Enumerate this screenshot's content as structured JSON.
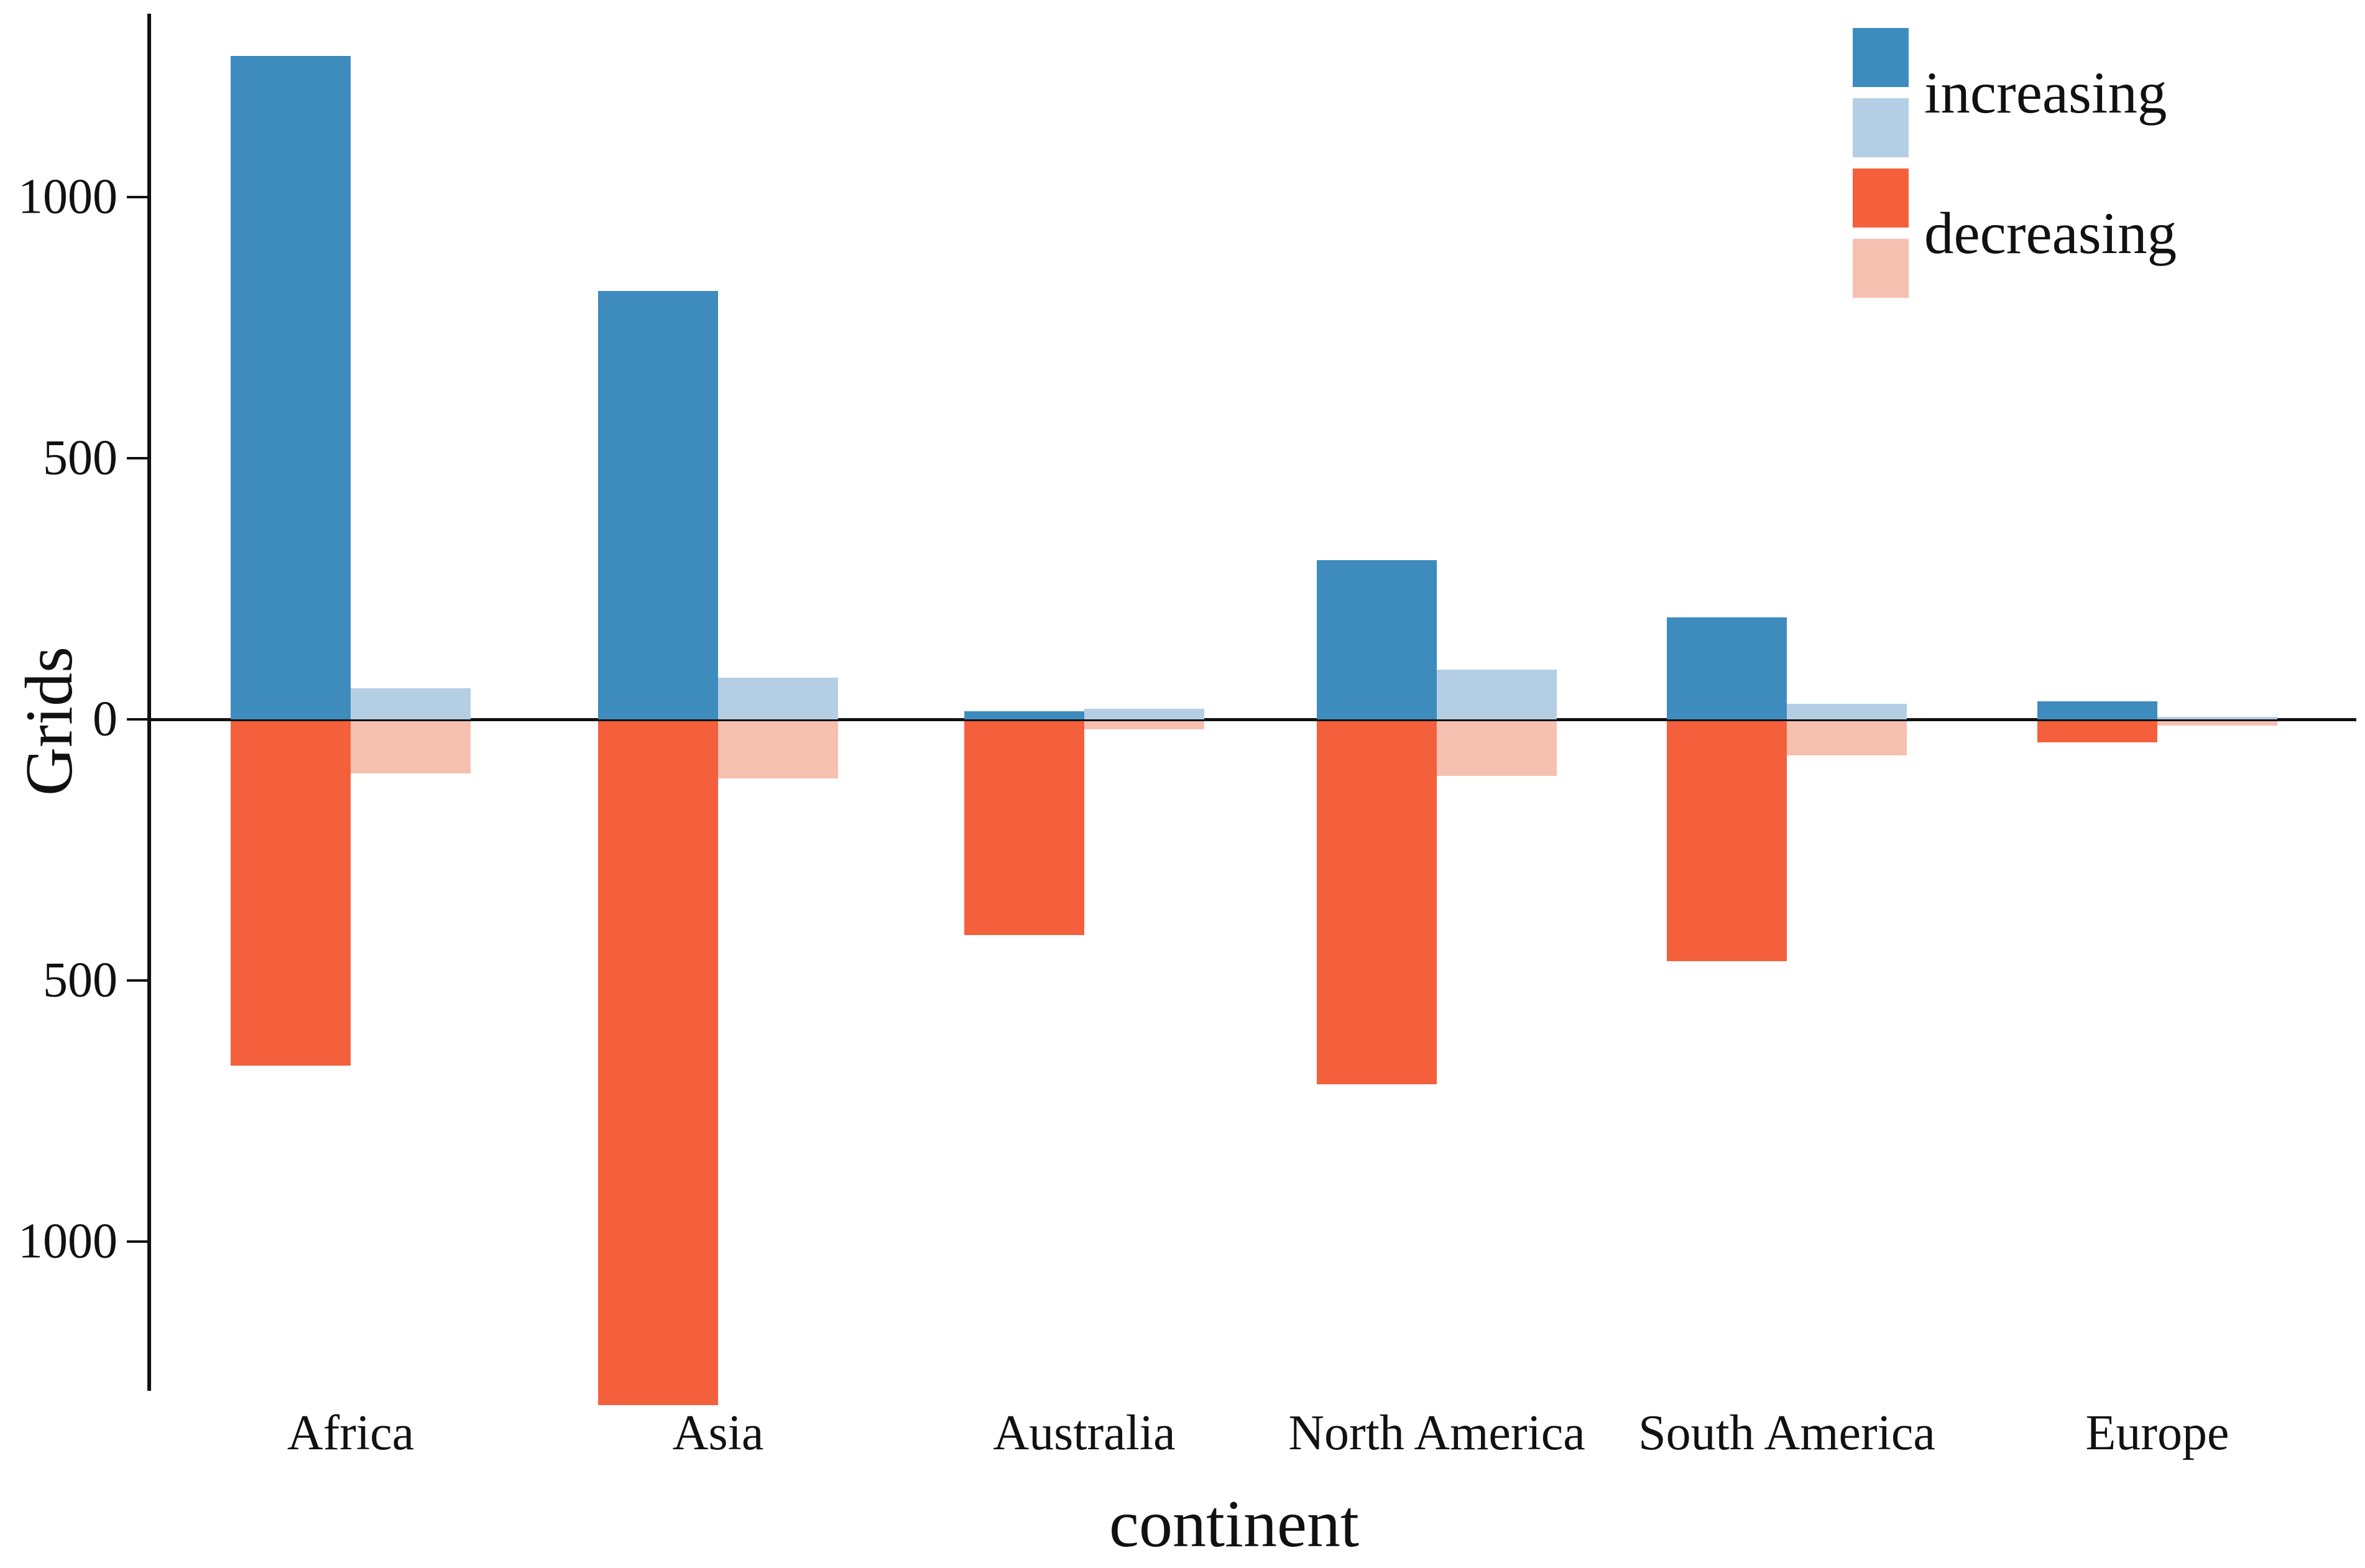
{
  "chart_data": {
    "type": "bar",
    "title": "",
    "xlabel": "continent",
    "ylabel": "Grids",
    "categories": [
      "Africa",
      "Asia",
      "Australia",
      "North America",
      "South America",
      "Europe"
    ],
    "series": [
      {
        "name": "increasing",
        "color": "#3E8CBE",
        "values": [
          1270,
          820,
          15,
          305,
          195,
          35
        ]
      },
      {
        "name": "increasing-light",
        "color": "#B4CFE4",
        "values": [
          60,
          80,
          20,
          95,
          30,
          5
        ]
      },
      {
        "name": "decreasing",
        "color": "#F4603C",
        "values": [
          -660,
          -1310,
          -410,
          -695,
          -460,
          -40
        ]
      },
      {
        "name": "decreasing-light",
        "color": "#F6C0B0",
        "values": [
          -100,
          -110,
          -15,
          -105,
          -65,
          -8
        ]
      }
    ],
    "yticks": [
      {
        "value": 1000,
        "label": "1000"
      },
      {
        "value": 500,
        "label": "500"
      },
      {
        "value": 0,
        "label": "0"
      },
      {
        "value": -500,
        "label": "500"
      },
      {
        "value": -1000,
        "label": "1000"
      }
    ],
    "ylim": [
      -1290,
      1350
    ],
    "grid": "off",
    "legend_position": "top-right",
    "legend": [
      {
        "label": "increasing",
        "swatches": [
          "#3E8CBE",
          "#B4CFE4"
        ]
      },
      {
        "label": "decreasing",
        "swatches": [
          "#F4603C",
          "#F6C0B0"
        ]
      }
    ]
  },
  "layout_text": {
    "y_axis_title": "Grids",
    "x_axis_title": "continent",
    "legend_increasing": "increasing",
    "legend_decreasing": "decreasing"
  }
}
